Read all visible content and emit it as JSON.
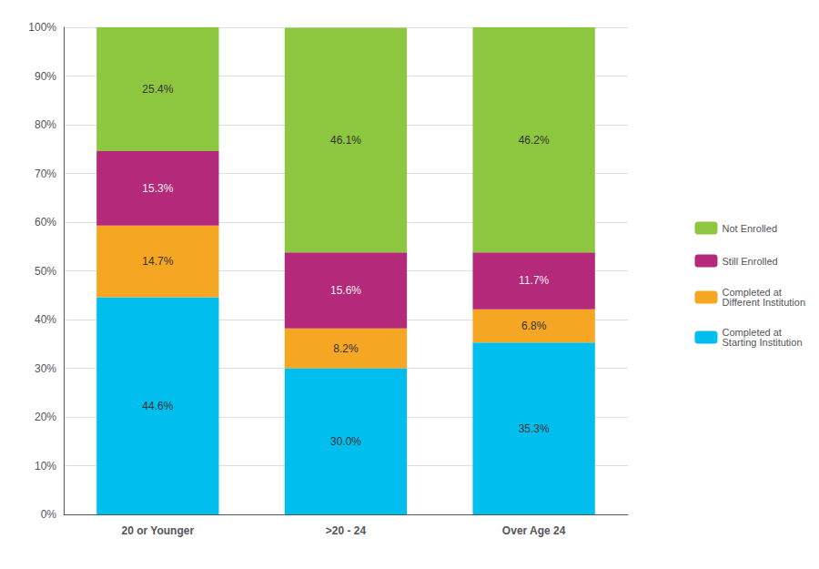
{
  "chart_data": {
    "type": "bar",
    "stacked": true,
    "data_labels": true,
    "grid": true,
    "legend": "right",
    "categories": [
      "20 or Younger",
      ">20 - 24",
      "Over Age 24"
    ],
    "series": [
      {
        "name": "Completed at\nStarting Institution",
        "color": "#00BFEF",
        "values": [
          44.6,
          30.0,
          35.3
        ],
        "value_labels": [
          "44.6%",
          "30.0%",
          "35.3%"
        ]
      },
      {
        "name": "Completed at\nDifferent Institution",
        "color": "#F5A623",
        "values": [
          14.7,
          8.2,
          6.8
        ],
        "value_labels": [
          "14.7%",
          "8.2%",
          "6.8%"
        ]
      },
      {
        "name": "Still Enrolled",
        "color": "#B5297A",
        "values": [
          15.3,
          15.6,
          11.7
        ],
        "value_labels": [
          "15.3%",
          "15.6%",
          "11.7%"
        ]
      },
      {
        "name": "Not Enrolled",
        "color": "#8DC63F",
        "values": [
          25.4,
          46.1,
          46.2
        ],
        "value_labels": [
          "25.4%",
          "46.1%",
          "46.2%"
        ]
      }
    ],
    "ylim": [
      0,
      100
    ],
    "yticks": [
      {
        "value": 0,
        "label": "0%"
      },
      {
        "value": 10,
        "label": "10%"
      },
      {
        "value": 20,
        "label": "20%"
      },
      {
        "value": 30,
        "label": "30%"
      },
      {
        "value": 40,
        "label": "40%"
      },
      {
        "value": 50,
        "label": "50%"
      },
      {
        "value": 60,
        "label": "60%"
      },
      {
        "value": 70,
        "label": "70%"
      },
      {
        "value": 80,
        "label": "80%"
      },
      {
        "value": 90,
        "label": "90%"
      },
      {
        "value": 100,
        "label": "100%"
      }
    ]
  }
}
